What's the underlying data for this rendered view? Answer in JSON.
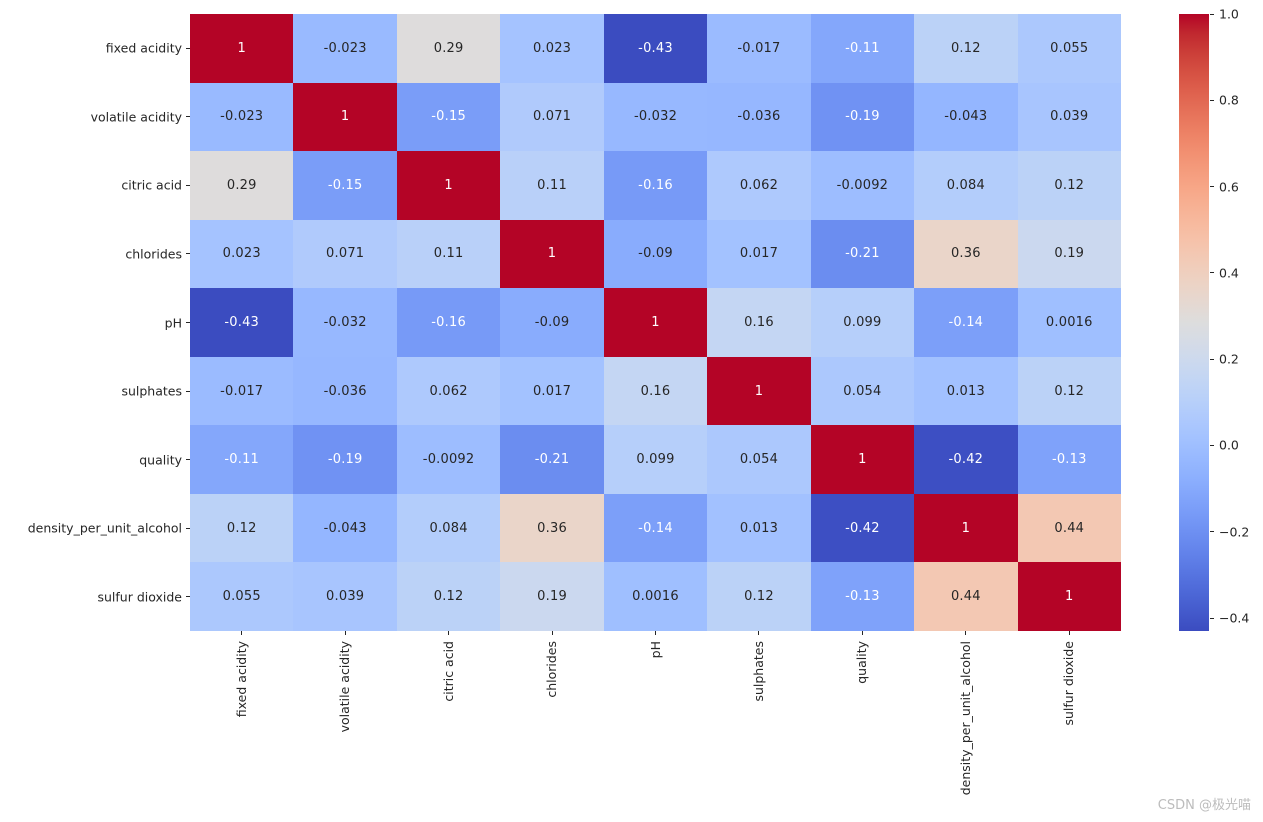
{
  "watermark": "CSDN @极光喵",
  "chart_data": {
    "type": "heatmap",
    "title": "",
    "colormap": "coolwarm",
    "vmin": -0.43,
    "vmax": 1.0,
    "annotation_format": ".2g",
    "legend_position": "colorbar-right",
    "grid": false,
    "variables": [
      "fixed acidity",
      "volatile acidity",
      "citric acid",
      "chlorides",
      "pH",
      "sulphates",
      "quality",
      "density_per_unit_alcohol",
      "sulfur dioxide"
    ],
    "matrix": [
      [
        "1",
        "-0.023",
        "0.29",
        "0.023",
        "-0.43",
        "-0.017",
        "-0.11",
        "0.12",
        "0.055"
      ],
      [
        "-0.023",
        "1",
        "-0.15",
        "0.071",
        "-0.032",
        "-0.036",
        "-0.19",
        "-0.043",
        "0.039"
      ],
      [
        "0.29",
        "-0.15",
        "1",
        "0.11",
        "-0.16",
        "0.062",
        "-0.0092",
        "0.084",
        "0.12"
      ],
      [
        "0.023",
        "0.071",
        "0.11",
        "1",
        "-0.09",
        "0.017",
        "-0.21",
        "0.36",
        "0.19"
      ],
      [
        "-0.43",
        "-0.032",
        "-0.16",
        "-0.09",
        "1",
        "0.16",
        "0.099",
        "-0.14",
        "0.0016"
      ],
      [
        "-0.017",
        "-0.036",
        "0.062",
        "0.017",
        "0.16",
        "1",
        "0.054",
        "0.013",
        "0.12"
      ],
      [
        "-0.11",
        "-0.19",
        "-0.0092",
        "-0.21",
        "0.099",
        "0.054",
        "1",
        "-0.42",
        "-0.13"
      ],
      [
        "0.12",
        "-0.043",
        "0.084",
        "0.36",
        "-0.14",
        "0.013",
        "-0.42",
        "1",
        "0.44"
      ],
      [
        "0.055",
        "0.039",
        "0.12",
        "0.19",
        "0.0016",
        "0.12",
        "-0.13",
        "0.44",
        "1"
      ]
    ],
    "colorbar_ticks": [
      "1.0",
      "0.8",
      "0.6",
      "0.4",
      "0.2",
      "0.0",
      "−0.2",
      "−0.4"
    ],
    "colors": {
      "max_color": "#b40426",
      "mid_color": "#dddddd",
      "min_color": "#3b4cc0",
      "annotation_dark": "#262626",
      "annotation_light": "#ffffff"
    }
  }
}
